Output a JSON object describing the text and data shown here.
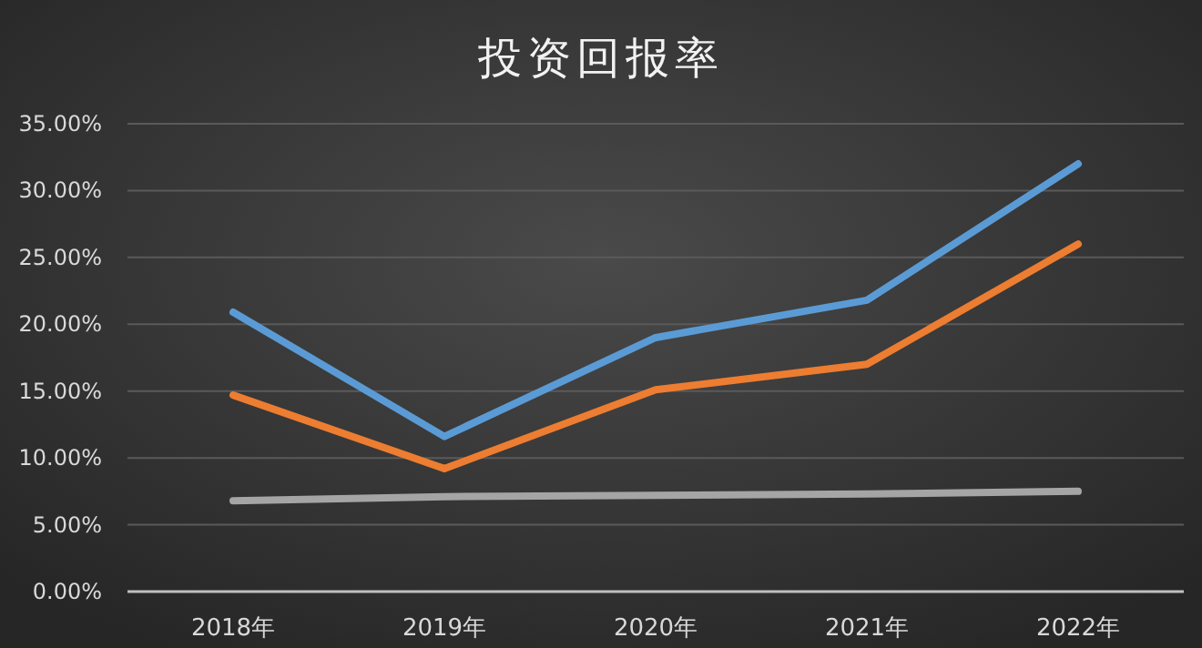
{
  "chart_data": {
    "type": "line",
    "title": "投资回报率",
    "categories": [
      "2018年",
      "2019年",
      "2020年",
      "2021年",
      "2022年"
    ],
    "series": [
      {
        "color": "#5b9bd5",
        "values": [
          20.9,
          11.6,
          19.0,
          21.8,
          32.0
        ]
      },
      {
        "color": "#ed7d31",
        "values": [
          14.7,
          9.2,
          15.1,
          17.0,
          26.0
        ]
      },
      {
        "color": "#a5a5a5",
        "values": [
          6.8,
          7.1,
          7.2,
          7.3,
          7.5
        ]
      }
    ],
    "ylim": [
      0,
      35
    ],
    "yticks": [
      {
        "value": 0,
        "label": "0.00%"
      },
      {
        "value": 5,
        "label": "5.00%"
      },
      {
        "value": 10,
        "label": "10.00%"
      },
      {
        "value": 15,
        "label": "15.00%"
      },
      {
        "value": 20,
        "label": "20.00%"
      },
      {
        "value": 25,
        "label": "25.00%"
      },
      {
        "value": 30,
        "label": "30.00%"
      },
      {
        "value": 35,
        "label": "35.00%"
      }
    ],
    "grid": "y",
    "marker": "none",
    "line_style": "solid"
  }
}
